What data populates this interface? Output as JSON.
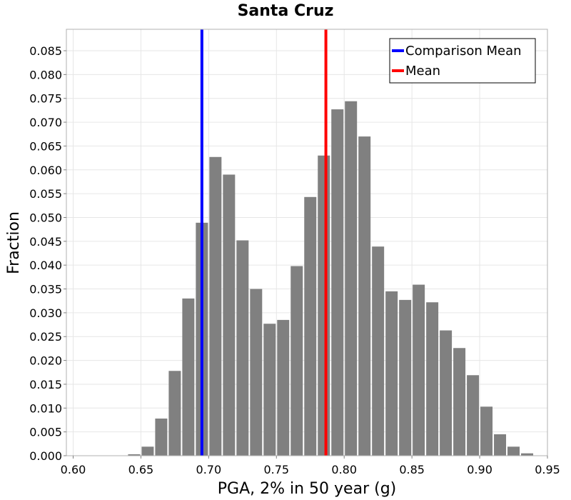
{
  "chart_data": {
    "type": "bar",
    "title": "Santa Cruz",
    "xlabel": "PGA, 2% in 50 year (g)",
    "ylabel": "Fraction",
    "xlim": [
      0.595,
      0.95
    ],
    "ylim": [
      0.0,
      0.0895
    ],
    "bin_width": 0.01,
    "bin_starts": [
      0.6,
      0.61,
      0.62,
      0.63,
      0.64,
      0.65,
      0.66,
      0.67,
      0.68,
      0.69,
      0.7,
      0.71,
      0.72,
      0.73,
      0.74,
      0.75,
      0.76,
      0.77,
      0.78,
      0.79,
      0.8,
      0.81,
      0.82,
      0.83,
      0.84,
      0.85,
      0.86,
      0.87,
      0.88,
      0.89,
      0.9,
      0.91,
      0.92,
      0.93
    ],
    "values": [
      0.0,
      0.0,
      0.0,
      0.0,
      0.0003,
      0.0019,
      0.0078,
      0.0178,
      0.033,
      0.0489,
      0.0627,
      0.059,
      0.0452,
      0.035,
      0.0277,
      0.0285,
      0.0398,
      0.0543,
      0.063,
      0.0727,
      0.0744,
      0.067,
      0.0439,
      0.0345,
      0.0327,
      0.0359,
      0.0322,
      0.0263,
      0.0226,
      0.0169,
      0.0103,
      0.0045,
      0.0019,
      0.0005
    ],
    "x_ticks": [
      "0.60",
      "0.65",
      "0.70",
      "0.75",
      "0.80",
      "0.85",
      "0.90",
      "0.95"
    ],
    "y_ticks": [
      "0.000",
      "0.005",
      "0.010",
      "0.015",
      "0.020",
      "0.025",
      "0.030",
      "0.035",
      "0.040",
      "0.045",
      "0.050",
      "0.055",
      "0.060",
      "0.065",
      "0.070",
      "0.075",
      "0.080",
      "0.085"
    ],
    "lines": [
      {
        "name": "Comparison Mean",
        "x": 0.695,
        "color": "#0000ff"
      },
      {
        "name": "Mean",
        "x": 0.7865,
        "color": "#ff0000"
      }
    ],
    "bar_color": "#808080",
    "legend": {
      "position": "top-right",
      "entries": [
        {
          "label": "Comparison Mean",
          "color": "#0000ff"
        },
        {
          "label": "Mean",
          "color": "#ff0000"
        }
      ]
    },
    "grid": true
  }
}
